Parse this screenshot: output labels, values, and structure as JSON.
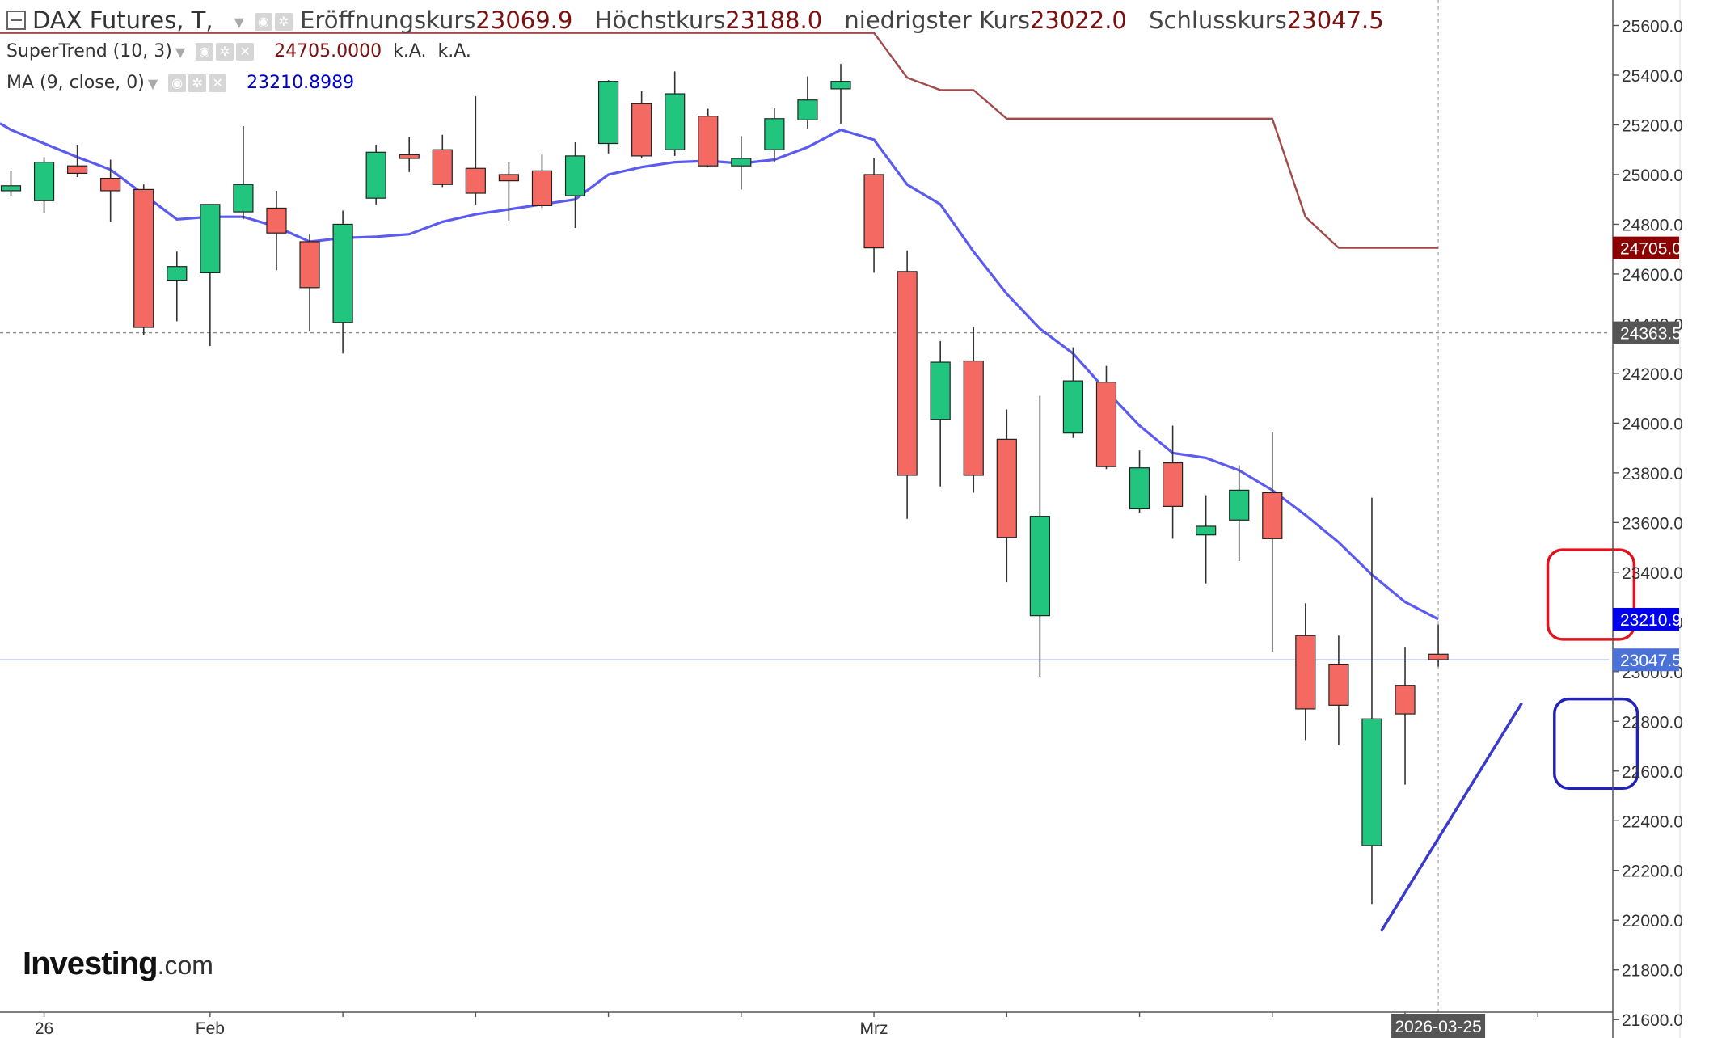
{
  "legend": {
    "title": "DAX Futures, T,",
    "open_label": "Eröffnungskurs",
    "open_value": "23069.9",
    "high_label": "Höchstkurs",
    "high_value": "23188.0",
    "low_label": "niedrigster Kurs",
    "low_value": "23022.0",
    "close_label": "Schlusskurs",
    "close_value": "23047.5",
    "supertrend_label": "SuperTrend (10, 3)",
    "supertrend_value": "24705.0000",
    "supertrend_na1": "k.A.",
    "supertrend_na2": "k.A.",
    "ma_label": "MA (9, close, 0)",
    "ma_value": "23210.8989"
  },
  "logo": {
    "main": "Investing",
    "suffix": ".com"
  },
  "colors": {
    "up": "#22c57d",
    "down": "#f46a62",
    "wick": "#333333",
    "ma": "#5b5bf0",
    "supertrend": "#a14a4a",
    "annotation_red": "#e0141e",
    "annotation_blue": "#2222b8",
    "trend_line": "#3a3acc"
  },
  "chart_data": {
    "type": "candlestick",
    "y_axis": {
      "range": [
        21500,
        25700
      ],
      "ticks": [
        21600,
        21800,
        22000,
        22200,
        22400,
        22600,
        22800,
        23000,
        23200,
        23400,
        23600,
        23800,
        24000,
        24200,
        24400,
        24600,
        24800,
        25000,
        25200,
        25400,
        25600
      ],
      "tick_labels": [
        "21600.0",
        "21800.0",
        "22000.0",
        "22200.0",
        "22400.0",
        "22600.0",
        "22800.0",
        "23000.0",
        "23200.0",
        "23400.0",
        "23600.0",
        "23800.0",
        "24000.0",
        "24200.0",
        "24400.0",
        "24600.0",
        "24800.0",
        "25000.0",
        "25200.0",
        "25400.0",
        "25600.0"
      ]
    },
    "x_axis": {
      "labels": [
        {
          "text": "26",
          "index": 1
        },
        {
          "text": "Feb",
          "index": 6
        },
        {
          "text": "Mrz",
          "index": 26
        }
      ],
      "current_label": "2026-03-25",
      "tick_indices": [
        1,
        6,
        10,
        14,
        18,
        22,
        26,
        30,
        34,
        38,
        42,
        46
      ]
    },
    "crosshair_price": 24363.5,
    "crosshair_label": "24363.5",
    "price_line": 23047.5,
    "price_labels": [
      {
        "text": "24705.0",
        "value": 24705.0,
        "bg": "#8b0000"
      },
      {
        "text": "24363.5",
        "value": 24363.5,
        "bg": "#555555"
      },
      {
        "text": "23210.9",
        "value": 23210.9,
        "bg": "#0000ee"
      },
      {
        "text": "23047.5",
        "value": 23047.5,
        "bg": "#4a72d8"
      }
    ],
    "candles": [
      {
        "o": 24935,
        "h": 25015,
        "l": 24915,
        "c": 24955
      },
      {
        "o": 24895,
        "h": 25070,
        "l": 24845,
        "c": 25050
      },
      {
        "o": 25035,
        "h": 25120,
        "l": 24990,
        "c": 25005
      },
      {
        "o": 24985,
        "h": 25060,
        "l": 24810,
        "c": 24935
      },
      {
        "o": 24940,
        "h": 24960,
        "l": 24355,
        "c": 24385
      },
      {
        "o": 24575,
        "h": 24690,
        "l": 24410,
        "c": 24630
      },
      {
        "o": 24605,
        "h": 24870,
        "l": 24310,
        "c": 24880
      },
      {
        "o": 24850,
        "h": 25195,
        "l": 24820,
        "c": 24960
      },
      {
        "o": 24865,
        "h": 24935,
        "l": 24615,
        "c": 24765
      },
      {
        "o": 24730,
        "h": 24760,
        "l": 24370,
        "c": 24545
      },
      {
        "o": 24405,
        "h": 24855,
        "l": 24280,
        "c": 24800
      },
      {
        "o": 24905,
        "h": 25120,
        "l": 24880,
        "c": 25090
      },
      {
        "o": 25080,
        "h": 25150,
        "l": 25010,
        "c": 25065
      },
      {
        "o": 25100,
        "h": 25160,
        "l": 24950,
        "c": 24960
      },
      {
        "o": 25025,
        "h": 25315,
        "l": 24880,
        "c": 24925
      },
      {
        "o": 25000,
        "h": 25050,
        "l": 24815,
        "c": 24975
      },
      {
        "o": 25015,
        "h": 25080,
        "l": 24865,
        "c": 24875
      },
      {
        "o": 24915,
        "h": 25130,
        "l": 24785,
        "c": 25075
      },
      {
        "o": 25125,
        "h": 25380,
        "l": 25085,
        "c": 25375
      },
      {
        "o": 25285,
        "h": 25335,
        "l": 25065,
        "c": 25075
      },
      {
        "o": 25100,
        "h": 25415,
        "l": 25075,
        "c": 25325
      },
      {
        "o": 25235,
        "h": 25265,
        "l": 25030,
        "c": 25035
      },
      {
        "o": 25035,
        "h": 25155,
        "l": 24940,
        "c": 25065
      },
      {
        "o": 25100,
        "h": 25270,
        "l": 25050,
        "c": 25225
      },
      {
        "o": 25220,
        "h": 25395,
        "l": 25185,
        "c": 25300
      },
      {
        "o": 25345,
        "h": 25445,
        "l": 25205,
        "c": 25375
      },
      {
        "o": 25000,
        "h": 25065,
        "l": 24605,
        "c": 24705
      },
      {
        "o": 24610,
        "h": 24695,
        "l": 23615,
        "c": 23790
      },
      {
        "o": 24015,
        "h": 24330,
        "l": 23745,
        "c": 24245
      },
      {
        "o": 24250,
        "h": 24385,
        "l": 23720,
        "c": 23790
      },
      {
        "o": 23935,
        "h": 24055,
        "l": 23360,
        "c": 23540
      },
      {
        "o": 23225,
        "h": 24110,
        "l": 22980,
        "c": 23625
      },
      {
        "o": 23960,
        "h": 24305,
        "l": 23940,
        "c": 24170
      },
      {
        "o": 24165,
        "h": 24230,
        "l": 23815,
        "c": 23825
      },
      {
        "o": 23655,
        "h": 23890,
        "l": 23640,
        "c": 23820
      },
      {
        "o": 23840,
        "h": 23990,
        "l": 23535,
        "c": 23665
      },
      {
        "o": 23550,
        "h": 23710,
        "l": 23355,
        "c": 23585
      },
      {
        "o": 23610,
        "h": 23830,
        "l": 23445,
        "c": 23730
      },
      {
        "o": 23720,
        "h": 23965,
        "l": 23080,
        "c": 23535
      },
      {
        "o": 23145,
        "h": 23275,
        "l": 22725,
        "c": 22850
      },
      {
        "o": 23030,
        "h": 23145,
        "l": 22705,
        "c": 22865
      },
      {
        "o": 22300,
        "h": 23700,
        "l": 22065,
        "c": 22810
      },
      {
        "o": 22945,
        "h": 23100,
        "l": 22545,
        "c": 22830
      },
      {
        "o": 23070,
        "h": 23190,
        "l": 23020,
        "c": 23048
      }
    ],
    "ma_values": [
      25180,
      25125,
      25070,
      25020,
      24920,
      24820,
      24830,
      24830,
      24790,
      24730,
      24745,
      24750,
      24760,
      24810,
      24840,
      24860,
      24880,
      24900,
      25000,
      25030,
      25050,
      25055,
      25045,
      25060,
      25110,
      25180,
      25140,
      24960,
      24880,
      24690,
      24520,
      24380,
      24280,
      24130,
      23990,
      23880,
      23860,
      23810,
      23730,
      23630,
      23520,
      23390,
      23280,
      23211
    ],
    "supertrend_values": [
      25570,
      25570,
      25570,
      25570,
      25570,
      25570,
      25570,
      25570,
      25570,
      25570,
      25570,
      25570,
      25570,
      25570,
      25570,
      25570,
      25570,
      25570,
      25570,
      25570,
      25570,
      25570,
      25570,
      25570,
      25570,
      25570,
      25570,
      25390,
      25340,
      25340,
      25225,
      25225,
      25225,
      25225,
      25225,
      25225,
      25225,
      25225,
      25225,
      24830,
      24705,
      24705,
      24705,
      24705
    ],
    "trend_line": {
      "from": {
        "index": 41.3,
        "value": 21960
      },
      "to": {
        "index": 45.5,
        "value": 22870
      }
    },
    "annotations": [
      {
        "type": "rounded-rect",
        "color": "red",
        "y_range": [
          23130,
          23490
        ],
        "index_range": [
          46.3,
          48.9
        ]
      },
      {
        "type": "rounded-rect",
        "color": "blue",
        "y_range": [
          22530,
          22890
        ],
        "index_range": [
          46.5,
          49.0
        ]
      }
    ]
  }
}
